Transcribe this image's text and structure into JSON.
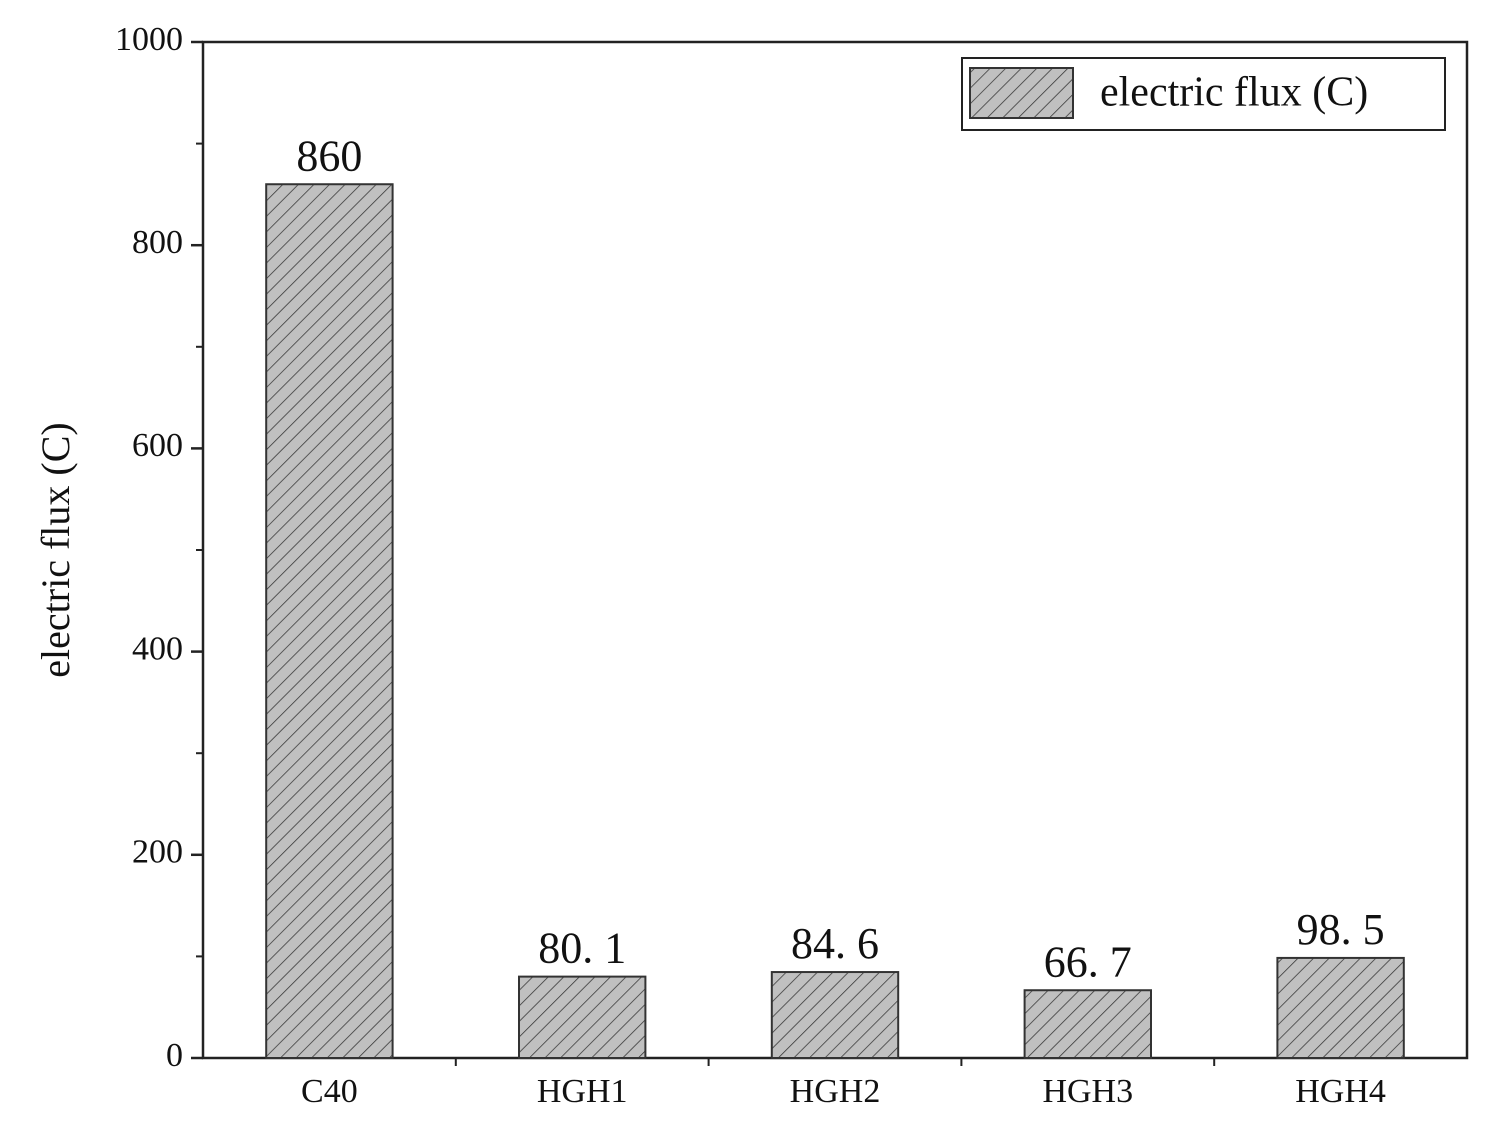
{
  "chart_data": {
    "type": "bar",
    "y_label": "electric flux (C)",
    "categories": [
      "C40",
      "HGH1",
      "HGH2",
      "HGH3",
      "HGH4"
    ],
    "series": [
      {
        "name": "electric flux (C)",
        "color": "#c0c0c0",
        "values": [
          860,
          80.1,
          84.6,
          66.7,
          98.5
        ],
        "value_labels": [
          "860",
          "80. 1",
          "84. 6",
          "66. 7",
          "98. 5"
        ]
      }
    ],
    "ylim": [
      0,
      1000
    ],
    "yticks": [
      0,
      200,
      400,
      600,
      800,
      1000
    ],
    "yminorticks": [
      100,
      300,
      500,
      700,
      900
    ],
    "legend": "top-right",
    "hatch": true
  }
}
